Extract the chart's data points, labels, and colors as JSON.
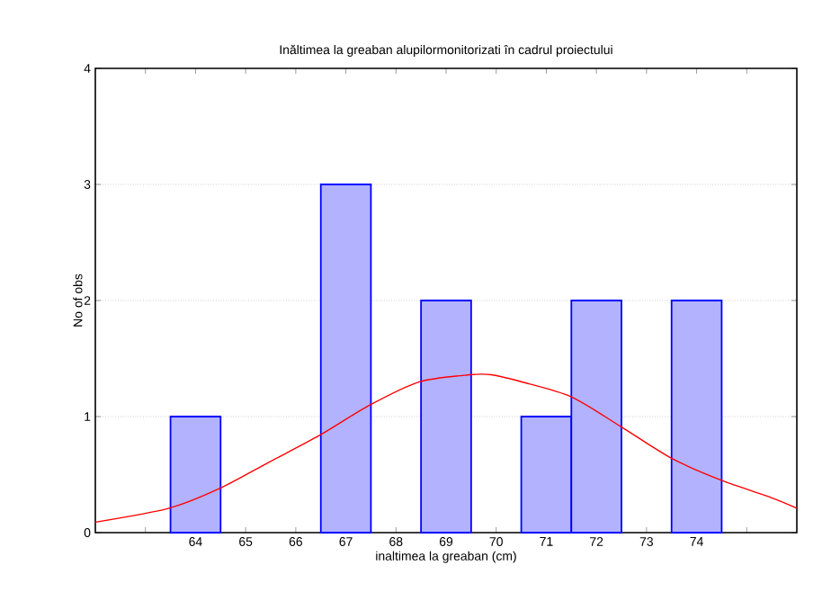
{
  "chart_data": {
    "type": "histogram",
    "title": "Inăltimea la greaban alupilormonitorizati în cadrul proiectului",
    "xlabel": "inaltimea la greaban (cm)",
    "ylabel": "No of obs",
    "xlim": [
      62,
      76
    ],
    "xticks": [
      {
        "value": 63,
        "label": null
      },
      64,
      65,
      66,
      67,
      68,
      69,
      70,
      71,
      72,
      73,
      74,
      {
        "value": 75,
        "label": null
      }
    ],
    "ylim": [
      0,
      4
    ],
    "yticks": [
      0,
      1,
      2,
      3,
      4
    ],
    "grid": "y",
    "series": [
      {
        "color": "#0000ff",
        "bins": [
          63.5,
          64.5,
          65.5,
          66.5,
          67.5,
          68.5,
          69.5,
          70.5,
          71.5,
          72.5,
          73.5,
          74.5
        ],
        "values": [
          1,
          0,
          0,
          3,
          0,
          2,
          0,
          1,
          2,
          0,
          2
        ]
      },
      {
        "type": "line",
        "color": "#ff0000",
        "x": [
          62,
          63.47,
          64.48,
          65.48,
          66.48,
          67.48,
          68.47,
          69.48,
          69.9,
          70.5,
          71.5,
          72.5,
          73.5,
          74.5,
          75.5,
          76
        ],
        "values": [
          0.09,
          0.21,
          0.38,
          0.61,
          0.84,
          1.1,
          1.3,
          1.36,
          1.36,
          1.3,
          1.17,
          0.91,
          0.64,
          0.45,
          0.3,
          0.21
        ]
      }
    ]
  }
}
